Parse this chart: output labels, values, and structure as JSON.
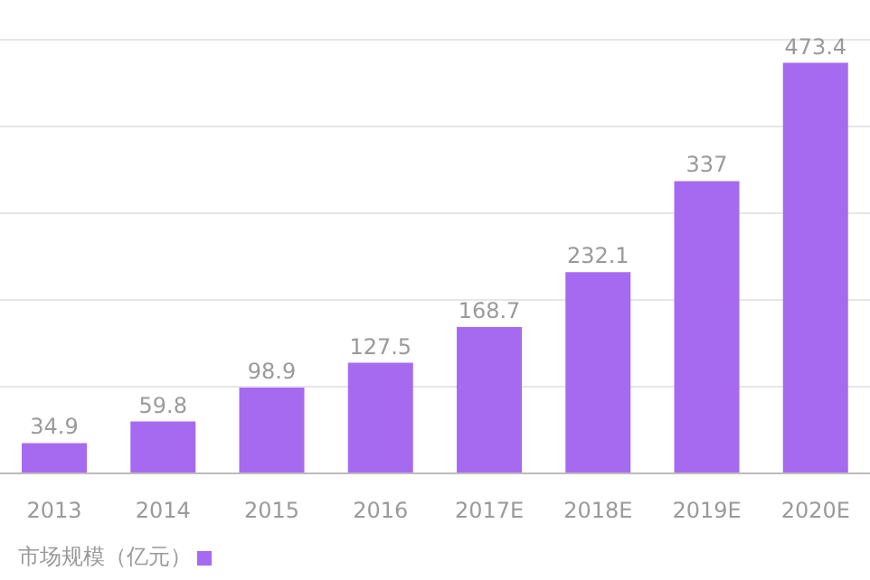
{
  "chart_data": {
    "type": "bar",
    "categories": [
      "2013",
      "2014",
      "2015",
      "2016",
      "2017E",
      "2018E",
      "2019E",
      "2020E"
    ],
    "series": [
      {
        "name": "市场规模（亿元）",
        "color": "#a66af0",
        "values": [
          34.9,
          59.8,
          98.9,
          127.5,
          168.7,
          232.1,
          337,
          473.4
        ]
      }
    ],
    "ylim": [
      0,
      500
    ],
    "yticks": [
      {
        "value": 0,
        "label": null
      },
      {
        "value": 100,
        "label": null
      },
      {
        "value": 200,
        "label": null
      },
      {
        "value": 300,
        "label": null
      },
      {
        "value": 400,
        "label": null
      },
      {
        "value": 500,
        "label": null
      }
    ],
    "grid": "y",
    "legend": "bottom left",
    "data_labels": true
  }
}
